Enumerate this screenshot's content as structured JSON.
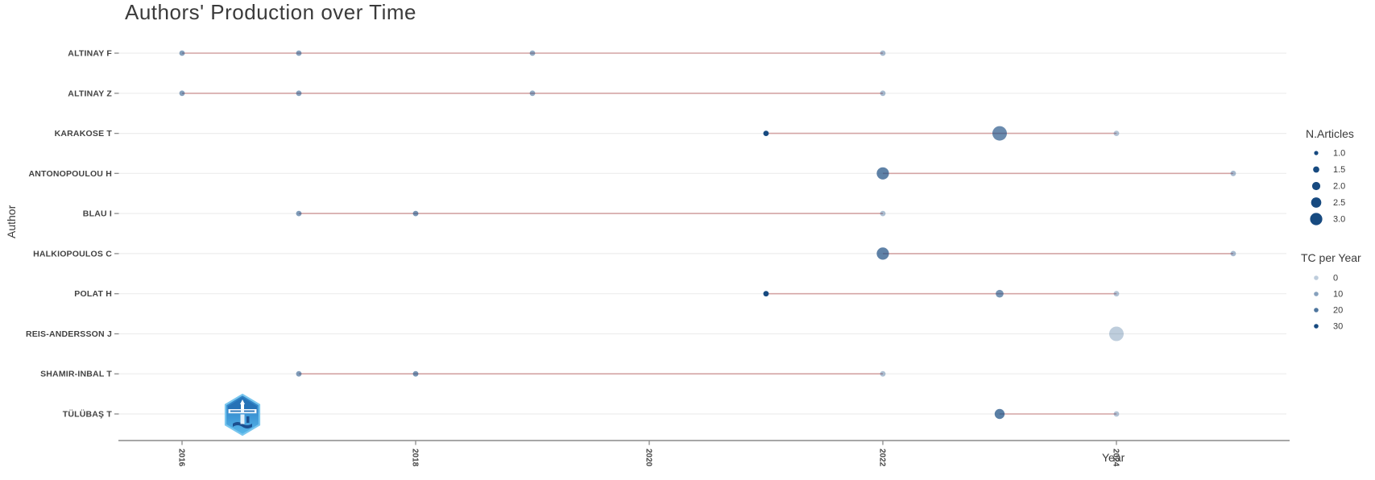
{
  "chart_data": {
    "type": "scatter",
    "title": "Authors' Production over Time",
    "xlabel": "Year",
    "ylabel": "Author",
    "x_ticks": [
      2016,
      2018,
      2020,
      2022,
      2024
    ],
    "x_range": [
      2015.45,
      2025.45
    ],
    "grid": "horizontal-row-guides",
    "legend_position": "right",
    "colors": {
      "point_base": "#174a80",
      "timeline_line": "#d4a5a5",
      "row_guide": "#ededed",
      "axis": "#8a8a8a",
      "title_text": "#3b3b3b",
      "label_text": "#424242"
    },
    "series": [
      {
        "author": "ALTINAY F",
        "line": [
          2016,
          2022
        ],
        "points": [
          {
            "year": 2016,
            "n_articles": 1,
            "tc_per_year": 10
          },
          {
            "year": 2017,
            "n_articles": 1,
            "tc_per_year": 10
          },
          {
            "year": 2019,
            "n_articles": 1,
            "tc_per_year": 8
          },
          {
            "year": 2022,
            "n_articles": 1,
            "tc_per_year": 4
          }
        ]
      },
      {
        "author": "ALTINAY Z",
        "line": [
          2016,
          2022
        ],
        "points": [
          {
            "year": 2016,
            "n_articles": 1,
            "tc_per_year": 10
          },
          {
            "year": 2017,
            "n_articles": 1,
            "tc_per_year": 10
          },
          {
            "year": 2019,
            "n_articles": 1,
            "tc_per_year": 8
          },
          {
            "year": 2022,
            "n_articles": 1,
            "tc_per_year": 4
          }
        ]
      },
      {
        "author": "KARAKOSE T",
        "line": [
          2021,
          2024
        ],
        "points": [
          {
            "year": 2021,
            "n_articles": 1,
            "tc_per_year": 30
          },
          {
            "year": 2023,
            "n_articles": 3,
            "tc_per_year": 15
          },
          {
            "year": 2024,
            "n_articles": 1,
            "tc_per_year": 2
          }
        ]
      },
      {
        "author": "ANTONOPOULOU H",
        "line": [
          2022,
          2025
        ],
        "points": [
          {
            "year": 2022,
            "n_articles": 2.5,
            "tc_per_year": 17
          },
          {
            "year": 2025,
            "n_articles": 1,
            "tc_per_year": 4
          }
        ]
      },
      {
        "author": "BLAU I",
        "line": [
          2017,
          2022
        ],
        "points": [
          {
            "year": 2017,
            "n_articles": 1,
            "tc_per_year": 11
          },
          {
            "year": 2018,
            "n_articles": 1,
            "tc_per_year": 13
          },
          {
            "year": 2022,
            "n_articles": 1,
            "tc_per_year": 3
          }
        ]
      },
      {
        "author": "HALKIOPOULOS C",
        "line": [
          2022,
          2025
        ],
        "points": [
          {
            "year": 2022,
            "n_articles": 2.5,
            "tc_per_year": 17
          },
          {
            "year": 2025,
            "n_articles": 1,
            "tc_per_year": 4
          }
        ]
      },
      {
        "author": "POLAT H",
        "line": [
          2021,
          2024
        ],
        "points": [
          {
            "year": 2021,
            "n_articles": 1,
            "tc_per_year": 30
          },
          {
            "year": 2023,
            "n_articles": 1.5,
            "tc_per_year": 13
          },
          {
            "year": 2024,
            "n_articles": 1,
            "tc_per_year": 2
          }
        ]
      },
      {
        "author": "REIS-ANDERSSON J",
        "line": null,
        "points": [
          {
            "year": 2024,
            "n_articles": 3,
            "tc_per_year": 0
          }
        ]
      },
      {
        "author": "SHAMIR-INBAL T",
        "line": [
          2017,
          2022
        ],
        "points": [
          {
            "year": 2017,
            "n_articles": 1,
            "tc_per_year": 11
          },
          {
            "year": 2018,
            "n_articles": 1,
            "tc_per_year": 13
          },
          {
            "year": 2022,
            "n_articles": 1,
            "tc_per_year": 3
          }
        ]
      },
      {
        "author": "TÜLÜBAŞ T",
        "line": [
          2023,
          2024
        ],
        "points": [
          {
            "year": 2023,
            "n_articles": 2,
            "tc_per_year": 18
          },
          {
            "year": 2024,
            "n_articles": 1,
            "tc_per_year": 2
          }
        ]
      }
    ],
    "legends": {
      "size": {
        "title": "N.Articles",
        "entries": [
          "1.0",
          "1.5",
          "2.0",
          "2.5",
          "3.0"
        ],
        "values": [
          1.0,
          1.5,
          2.0,
          2.5,
          3.0
        ]
      },
      "color": {
        "title": "TC per Year",
        "entries": [
          "0",
          "10",
          "20",
          "30"
        ],
        "values": [
          0,
          10,
          20,
          30
        ]
      }
    },
    "watermark_icon": "blue-hexagon-journal-badge"
  }
}
